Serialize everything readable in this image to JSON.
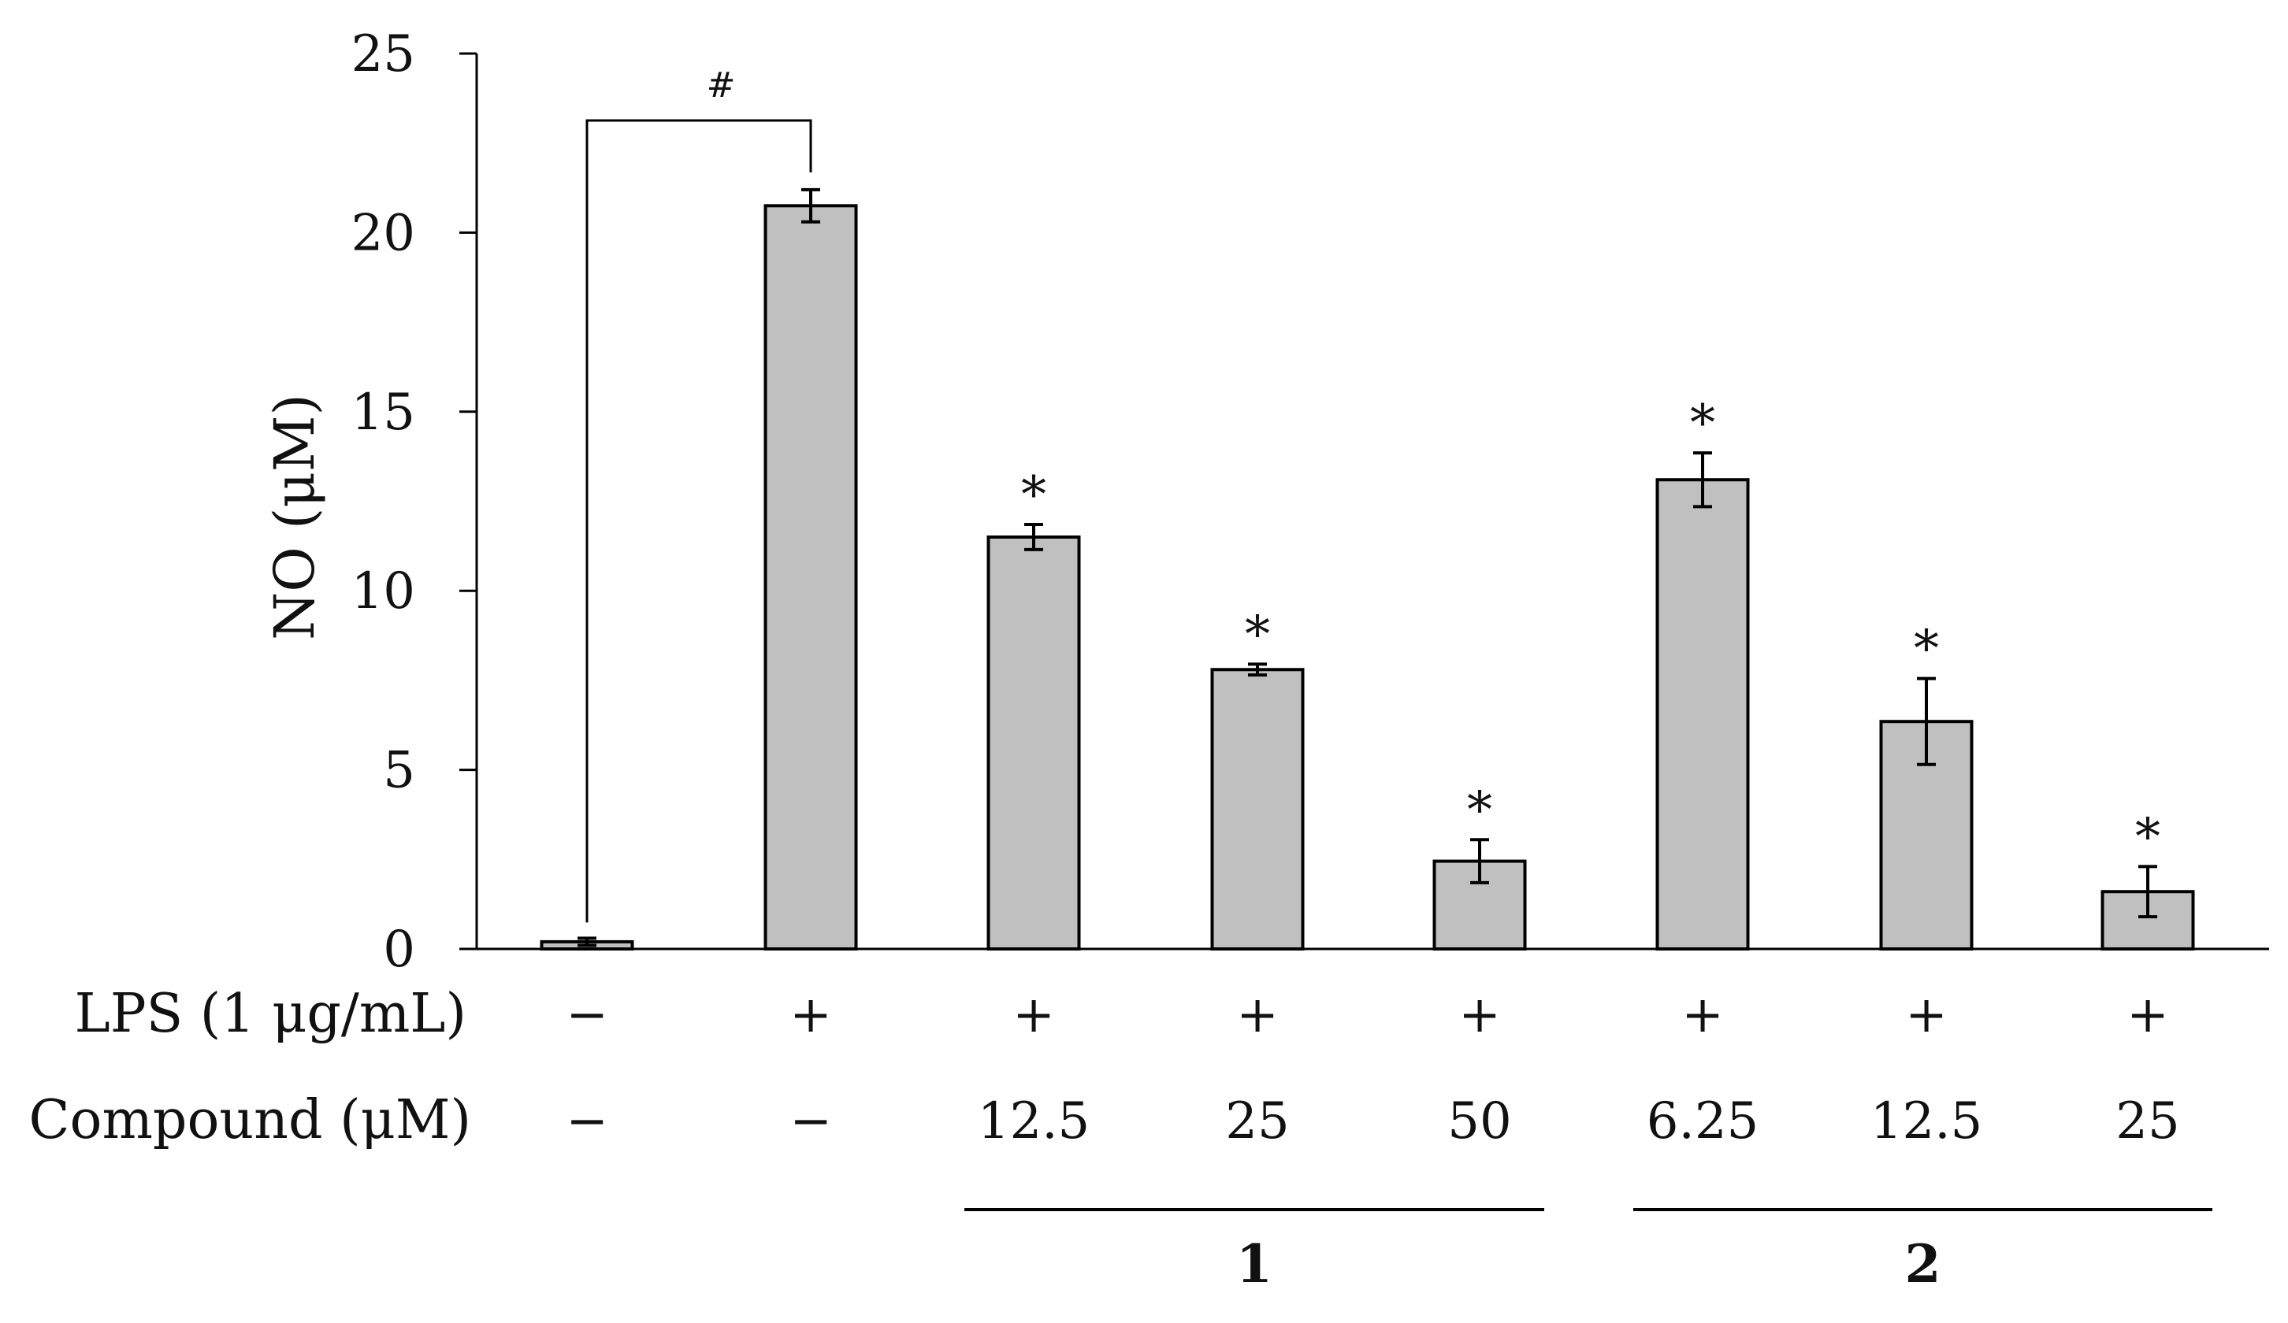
{
  "chart_data": {
    "type": "bar",
    "ylabel": "NO (μM)",
    "ylim": [
      0,
      25
    ],
    "yticks": [
      0,
      5,
      10,
      15,
      20,
      25
    ],
    "grid": false,
    "bar_color": "#c0c0c0",
    "edge_color": "#000000",
    "values": [
      0.2,
      20.75,
      11.5,
      7.8,
      2.45,
      13.1,
      6.35,
      1.6
    ],
    "errors": [
      0.1,
      0.45,
      0.35,
      0.15,
      0.6,
      0.75,
      1.2,
      0.7
    ],
    "significance": [
      "",
      "",
      "*",
      "*",
      "*",
      "*",
      "*",
      "*"
    ],
    "bracket": {
      "from": 0,
      "to": 1,
      "label": "#"
    },
    "rows": [
      {
        "label": "LPS (1 μg/mL)",
        "values": [
          "−",
          "+",
          "+",
          "+",
          "+",
          "+",
          "+",
          "+"
        ]
      },
      {
        "label": "Compound (μM)",
        "values": [
          "−",
          "−",
          "12.5",
          "25",
          "50",
          "6.25",
          "12.5",
          "25"
        ]
      }
    ],
    "groups": [
      {
        "label": "1",
        "start": 2,
        "end": 4
      },
      {
        "label": "2",
        "start": 5,
        "end": 7
      }
    ]
  }
}
